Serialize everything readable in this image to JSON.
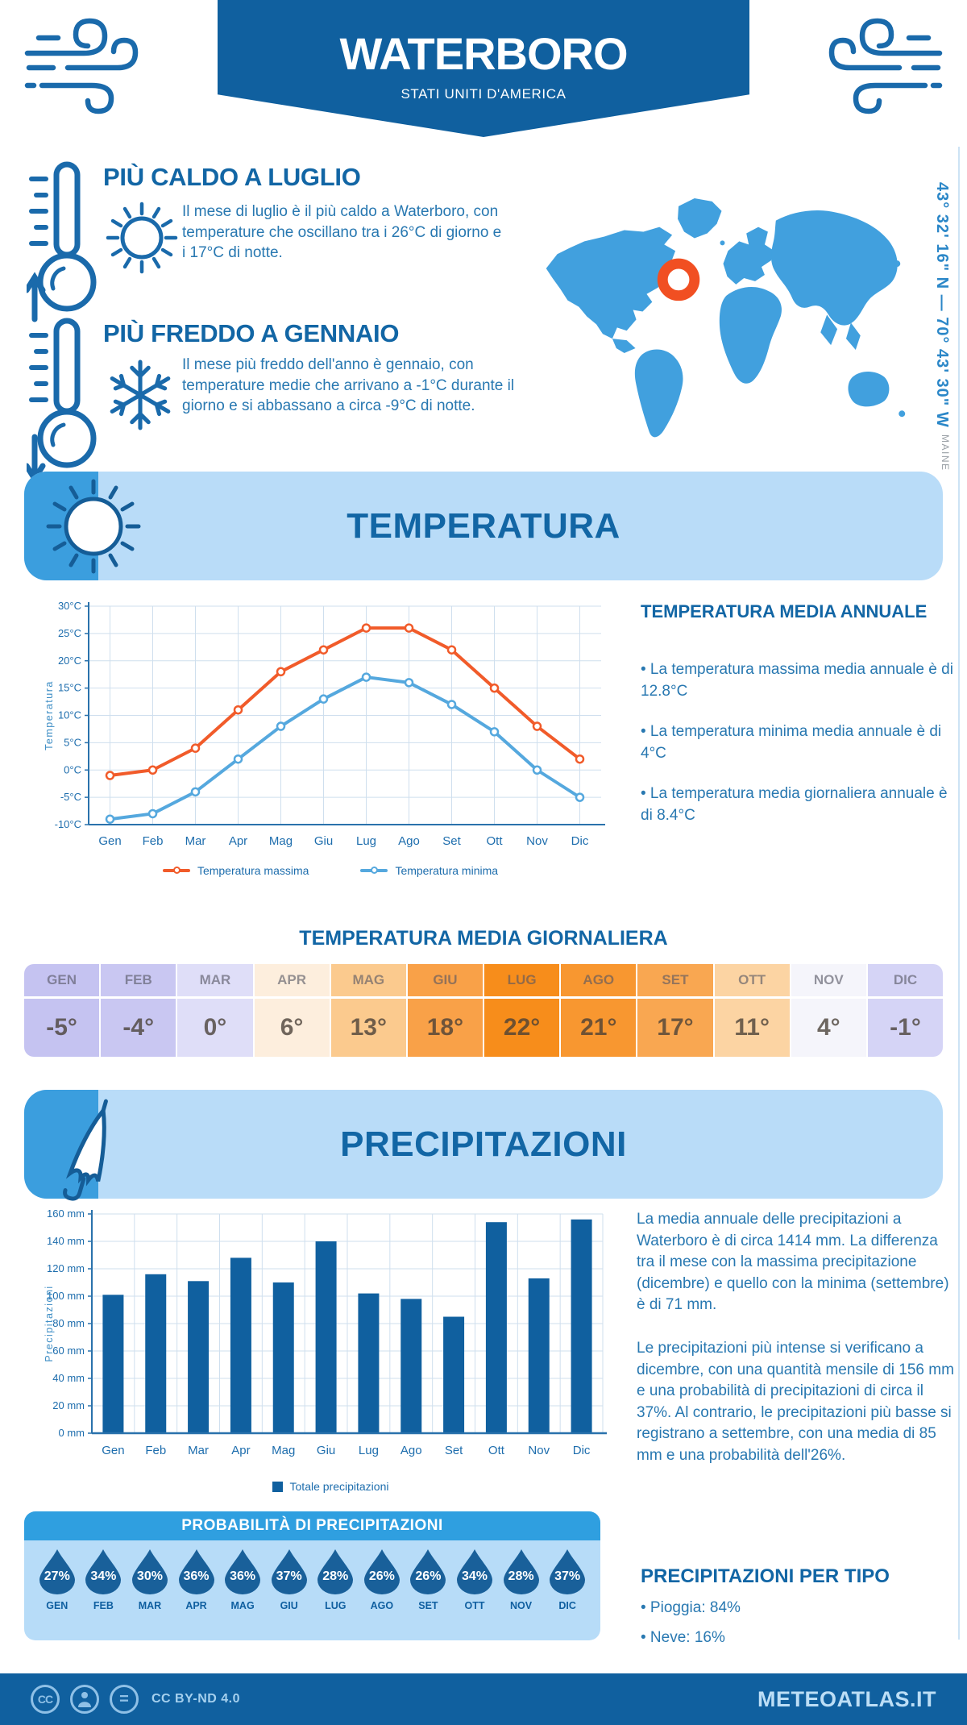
{
  "header": {
    "title": "WATERBORO",
    "subtitle": "STATI UNITI D'AMERICA"
  },
  "highlights": {
    "hot": {
      "title": "PIÙ CALDO A LUGLIO",
      "text": "Il mese di luglio è il più caldo a Waterboro, con temperature che oscillano tra i 26°C di giorno e i 17°C di notte."
    },
    "cold": {
      "title": "PIÙ FREDDO A GENNAIO",
      "text": "Il mese più freddo dell'anno è gennaio, con temperature medie che arrivano a -1°C durante il giorno e si abbassano a circa -9°C di notte."
    }
  },
  "map": {
    "coordinates": "43° 32' 16\" N — 70° 43' 30\" W",
    "region": "MAINE",
    "marker_color": "#f14f22",
    "land_color": "#41a0de"
  },
  "temperature": {
    "banner_title": "TEMPERATURA",
    "annual_title": "TEMPERATURA MEDIA ANNUALE",
    "annual_bullets": [
      "• La temperatura massima media annuale è di 12.8°C",
      "• La temperatura minima media annuale è di 4°C",
      "• La temperatura media giornaliera annuale è di 8.4°C"
    ],
    "daily_title": "TEMPERATURA MEDIA GIORNALIERA",
    "monthly": [
      {
        "month": "GEN",
        "value": "-5°",
        "bg": "#c5c3f1"
      },
      {
        "month": "FEB",
        "value": "-4°",
        "bg": "#c9c7f2"
      },
      {
        "month": "MAR",
        "value": "0°",
        "bg": "#dfdef8"
      },
      {
        "month": "APR",
        "value": "6°",
        "bg": "#fdeedd"
      },
      {
        "month": "MAG",
        "value": "13°",
        "bg": "#fbca8e"
      },
      {
        "month": "GIU",
        "value": "18°",
        "bg": "#f9a148"
      },
      {
        "month": "LUG",
        "value": "22°",
        "bg": "#f78d1b"
      },
      {
        "month": "AGO",
        "value": "21°",
        "bg": "#f89730"
      },
      {
        "month": "SET",
        "value": "17°",
        "bg": "#f9a751"
      },
      {
        "month": "OTT",
        "value": "11°",
        "bg": "#fcd4a3"
      },
      {
        "month": "NOV",
        "value": "4°",
        "bg": "#f5f5fb"
      },
      {
        "month": "DIC",
        "value": "-1°",
        "bg": "#d5d4f6"
      }
    ]
  },
  "precipitation": {
    "banner_title": "PRECIPITAZIONI",
    "paragraphs": [
      "La media annuale delle precipitazioni a Waterboro è di circa 1414 mm. La differenza tra il mese con la massima precipitazione (dicembre) e quello con la minima (settembre) è di 71 mm.",
      "Le precipitazioni più intense si verificano a dicembre, con una quantità mensile di 156 mm e una probabilità di precipitazioni di circa il 37%. Al contrario, le precipitazioni più basse si registrano a settembre, con una media di 85 mm e una probabilità dell'26%."
    ],
    "probability_title": "PROBABILITÀ DI PRECIPITAZIONI",
    "probability": [
      {
        "month": "GEN",
        "value": "27%"
      },
      {
        "month": "FEB",
        "value": "34%"
      },
      {
        "month": "MAR",
        "value": "30%"
      },
      {
        "month": "APR",
        "value": "36%"
      },
      {
        "month": "MAG",
        "value": "36%"
      },
      {
        "month": "GIU",
        "value": "37%"
      },
      {
        "month": "LUG",
        "value": "28%"
      },
      {
        "month": "AGO",
        "value": "26%"
      },
      {
        "month": "SET",
        "value": "26%"
      },
      {
        "month": "OTT",
        "value": "34%"
      },
      {
        "month": "NOV",
        "value": "28%"
      },
      {
        "month": "DIC",
        "value": "37%"
      }
    ],
    "type_title": "PRECIPITAZIONI PER TIPO",
    "type_bullets": [
      "• Pioggia: 84%",
      "• Neve: 16%"
    ]
  },
  "chart_data": [
    {
      "type": "line",
      "categories": [
        "Gen",
        "Feb",
        "Mar",
        "Apr",
        "Mag",
        "Giu",
        "Lug",
        "Ago",
        "Set",
        "Ott",
        "Nov",
        "Dic"
      ],
      "series": [
        {
          "name": "Temperatura massima",
          "color": "#f15b2a",
          "values": [
            -1,
            0,
            4,
            11,
            18,
            22,
            26,
            26,
            22,
            15,
            8,
            2
          ]
        },
        {
          "name": "Temperatura minima",
          "color": "#55a8de",
          "values": [
            -9,
            -8,
            -4,
            2,
            8,
            13,
            17,
            16,
            12,
            7,
            0,
            -5
          ]
        }
      ],
      "ylabel": "Temperatura",
      "ylim": [
        -10,
        30
      ],
      "ytick_step": 5,
      "ytick_suffix": "°C",
      "grid": true,
      "legend_position": "bottom"
    },
    {
      "type": "bar",
      "categories": [
        "Gen",
        "Feb",
        "Mar",
        "Apr",
        "Mag",
        "Giu",
        "Lug",
        "Ago",
        "Set",
        "Ott",
        "Nov",
        "Dic"
      ],
      "values": [
        101,
        116,
        111,
        128,
        110,
        140,
        102,
        98,
        85,
        154,
        113,
        156
      ],
      "series_name": "Totale precipitazioni",
      "bar_color": "#10609f",
      "ylabel": "Precipitazioni",
      "ylim": [
        0,
        160
      ],
      "ytick_step": 20,
      "ytick_suffix": " mm",
      "grid": true,
      "legend_position": "bottom"
    }
  ],
  "footer": {
    "license": "CC BY-ND 4.0",
    "site": "METEOATLAS.IT"
  }
}
